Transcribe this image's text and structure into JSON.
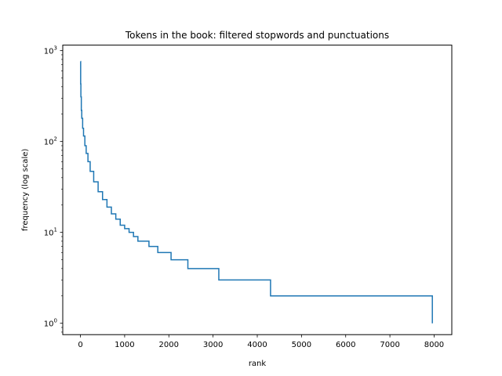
{
  "chart_data": {
    "type": "line",
    "title": "Tokens in the book: filtered stopwords and punctuations",
    "xlabel": "rank",
    "ylabel": "frequency (log scale)",
    "xlim": [
      -400,
      8400
    ],
    "ylim": [
      0.75,
      1150
    ],
    "y_scale": "log",
    "grid": false,
    "x_ticks": [
      0,
      1000,
      2000,
      3000,
      4000,
      5000,
      6000,
      7000,
      8000
    ],
    "x_tick_labels": [
      "0",
      "1000",
      "2000",
      "3000",
      "4000",
      "5000",
      "6000",
      "7000",
      "8000"
    ],
    "y_ticks": [
      1,
      10,
      100,
      1000
    ],
    "y_tick_labels": [
      {
        "base": "10",
        "exp": "0"
      },
      {
        "base": "10",
        "exp": "1"
      },
      {
        "base": "10",
        "exp": "2"
      },
      {
        "base": "10",
        "exp": "3"
      }
    ],
    "line_color": "#1f77b4",
    "series": [
      {
        "x": [
          0,
          5,
          10,
          20,
          30,
          50,
          70,
          100,
          130,
          170,
          220,
          300,
          400,
          500,
          600,
          700,
          800,
          900,
          1000,
          1100,
          1200,
          1300,
          1550,
          1750,
          2050,
          2430,
          3130,
          4300,
          7960
        ],
        "y": [
          760,
          430,
          310,
          220,
          180,
          140,
          115,
          90,
          74,
          60,
          47,
          36,
          28,
          23,
          19,
          16,
          14,
          12,
          11,
          10,
          9,
          8,
          7,
          6,
          5,
          4,
          3,
          2,
          1
        ],
        "step": "post"
      }
    ]
  }
}
